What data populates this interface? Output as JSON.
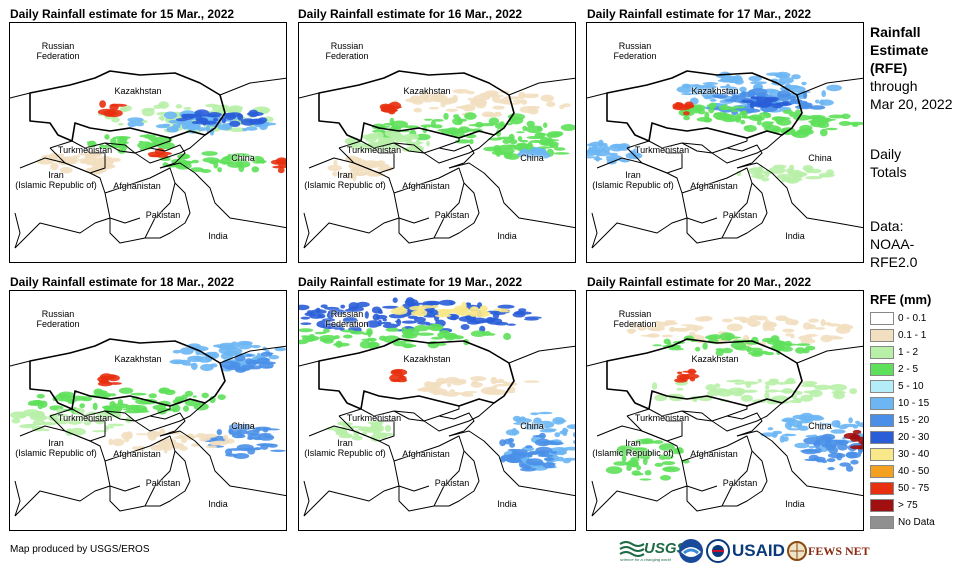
{
  "panels": [
    {
      "title": "Daily Rainfall estimate for 15 Mar., 2022"
    },
    {
      "title": "Daily Rainfall estimate for 16 Mar., 2022"
    },
    {
      "title": "Daily Rainfall estimate for 17 Mar., 2022"
    },
    {
      "title": "Daily Rainfall estimate for 18 Mar., 2022"
    },
    {
      "title": "Daily Rainfall estimate for 19 Mar., 2022"
    },
    {
      "title": "Daily Rainfall estimate for 20 Mar., 2022"
    }
  ],
  "map_labels": {
    "russia": "Russian Federation",
    "kazakhstan": "Kazakhstan",
    "turkmenistan": "Turkmenistan",
    "iran": "Iran (Islamic Republic of)",
    "afghanistan": "Afghanistan",
    "pakistan": "Pakistan",
    "china": "China",
    "india": "India"
  },
  "sidebar": {
    "title_line1": "Rainfall",
    "title_line2": "Estimate",
    "title_line3": "(RFE)",
    "through_line1": "through",
    "through_line2": "Mar 20, 2022",
    "totals_line1": "Daily",
    "totals_line2": "Totals",
    "data_line1": "Data:",
    "data_line2": "NOAA-",
    "data_line3": "RFE2.0"
  },
  "legend": {
    "title": "RFE (mm)",
    "items": [
      {
        "label": "0 - 0.1",
        "color": "#ffffff"
      },
      {
        "label": "0.1 - 1",
        "color": "#f2dfc0"
      },
      {
        "label": "1 - 2",
        "color": "#b8f0a8"
      },
      {
        "label": "2 - 5",
        "color": "#5ee05a"
      },
      {
        "label": "5 - 10",
        "color": "#b4ecf8"
      },
      {
        "label": "10 - 15",
        "color": "#6cb6f4"
      },
      {
        "label": "15 - 20",
        "color": "#4a90e8"
      },
      {
        "label": "20 - 30",
        "color": "#2a5ed8"
      },
      {
        "label": "30 - 40",
        "color": "#f8e88a"
      },
      {
        "label": "40 - 50",
        "color": "#f4a020"
      },
      {
        "label": "50 - 75",
        "color": "#e83010"
      },
      {
        "label": "> 75",
        "color": "#a01010"
      },
      {
        "label": "No Data",
        "color": "#909090"
      }
    ]
  },
  "credit": "Map produced by USGS/EROS",
  "logos": {
    "usgs": "USGS",
    "usgs_tagline": "science for a changing world",
    "usaid": "USAID",
    "fewsnet": "FEWS NET"
  }
}
